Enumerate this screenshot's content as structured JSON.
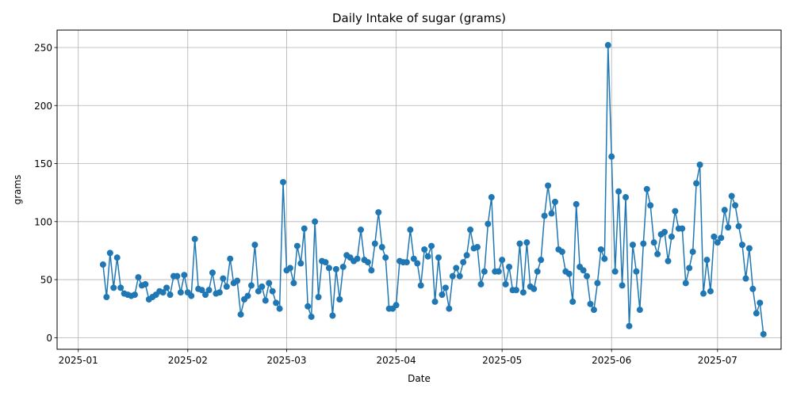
{
  "chart_data": {
    "type": "line",
    "title": "Daily Intake of sugar (grams)",
    "xlabel": "Date",
    "ylabel": "grams",
    "ylim": [
      -10,
      265
    ],
    "xlim": [
      "2024-12-26",
      "2025-07-19"
    ],
    "grid": true,
    "legend": "none",
    "color": "#1f77b4",
    "y_ticks": [
      0,
      50,
      100,
      150,
      200,
      250
    ],
    "x_ticks": [
      "2025-01-01",
      "2025-02-01",
      "2025-03-01",
      "2025-04-01",
      "2025-05-01",
      "2025-06-01",
      "2025-07-01"
    ],
    "x_tick_labels": [
      "2025-01",
      "2025-02",
      "2025-03",
      "2025-04",
      "2025-05",
      "2025-06",
      "2025-07"
    ],
    "start_date": "2025-01-08",
    "values": [
      63,
      35,
      73,
      43,
      69,
      43,
      38,
      37,
      36,
      37,
      52,
      45,
      46,
      33,
      35,
      37,
      40,
      39,
      43,
      37,
      53,
      53,
      39,
      54,
      39,
      36,
      85,
      42,
      41,
      37,
      41,
      56,
      38,
      39,
      51,
      44,
      68,
      47,
      49,
      20,
      33,
      36,
      45,
      80,
      40,
      44,
      32,
      47,
      40,
      30,
      25,
      134,
      58,
      60,
      47,
      79,
      64,
      94,
      27,
      18,
      100,
      35,
      66,
      65,
      60,
      19,
      59,
      33,
      61,
      71,
      69,
      66,
      68,
      93,
      67,
      65,
      58,
      81,
      108,
      78,
      69,
      25,
      25,
      28,
      66,
      65,
      65,
      93,
      68,
      64,
      45,
      76,
      70,
      79,
      31,
      69,
      37,
      43,
      25,
      53,
      60,
      53,
      65,
      71,
      93,
      77,
      78,
      46,
      57,
      98,
      121,
      57,
      57,
      67,
      46,
      61,
      41,
      41,
      81,
      39,
      82,
      44,
      42,
      57,
      67,
      105,
      131,
      107,
      117,
      76,
      74,
      57,
      55,
      31,
      115,
      61,
      58,
      53,
      29,
      24,
      47,
      76,
      68,
      252,
      156,
      57,
      126,
      45,
      121,
      10,
      80,
      57,
      24,
      81,
      128,
      114,
      82,
      72,
      89,
      91,
      66,
      87,
      109,
      94,
      94,
      47,
      60,
      74,
      133,
      149,
      38,
      67,
      40,
      87,
      82,
      86,
      110,
      95,
      122,
      114,
      96,
      80,
      51,
      77,
      42,
      21,
      30,
      3
    ]
  }
}
